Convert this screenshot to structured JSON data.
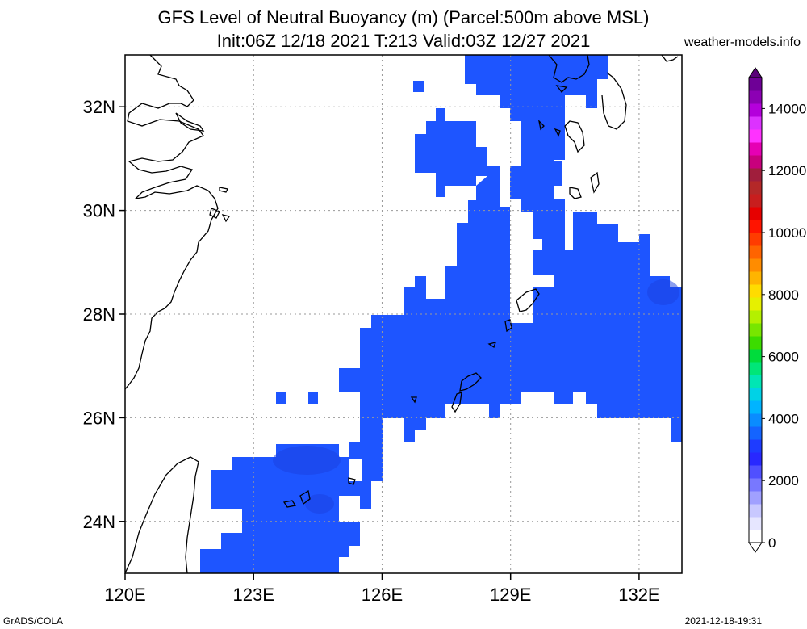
{
  "title_line1": "GFS Level of Neutral Buoyancy (m) (Parcel:500m above MSL)",
  "title_line2": "Init:06Z 12/18 2021 T:213 Valid:03Z 12/27 2021",
  "credit": "weather-models.info",
  "footer_left": "GrADS/COLA",
  "footer_right": "2021-12-18-19:31",
  "map": {
    "lon_range": [
      120,
      133
    ],
    "lat_range": [
      23,
      33
    ],
    "lon_ticks": [
      {
        "value": 120,
        "label": "120E"
      },
      {
        "value": 123,
        "label": "123E"
      },
      {
        "value": 126,
        "label": "126E"
      },
      {
        "value": 129,
        "label": "129E"
      },
      {
        "value": 132,
        "label": "132E"
      }
    ],
    "lat_ticks": [
      {
        "value": 24,
        "label": "24N"
      },
      {
        "value": 26,
        "label": "26N"
      },
      {
        "value": 28,
        "label": "28N"
      },
      {
        "value": 30,
        "label": "30N"
      },
      {
        "value": 32,
        "label": "32N"
      }
    ],
    "grid": true,
    "fill_color": "#1e55ff",
    "fill_color_dark": "#1a3fe0"
  },
  "colorbar": {
    "labels": [
      "0",
      "2000",
      "4000",
      "6000",
      "8000",
      "10000",
      "12000",
      "14000"
    ],
    "colors": [
      "#ffffff",
      "#e6e6ff",
      "#c8c8ff",
      "#a0a0ff",
      "#7878ff",
      "#5050ff",
      "#2828ff",
      "#1e3cff",
      "#1464ff",
      "#0a8cff",
      "#00b4ff",
      "#00d2e6",
      "#00e6b4",
      "#00e678",
      "#00dc3c",
      "#3cdc00",
      "#78e600",
      "#b4f000",
      "#e6f000",
      "#ffdc00",
      "#ffb400",
      "#ff8c00",
      "#ff6400",
      "#ff3c00",
      "#ff1400",
      "#e60000",
      "#c81e1e",
      "#b42828",
      "#a01e3c",
      "#c8007d",
      "#e600b4",
      "#ff32ff",
      "#dc32ff",
      "#b400dc",
      "#8c00b4",
      "#6e0096"
    ]
  }
}
